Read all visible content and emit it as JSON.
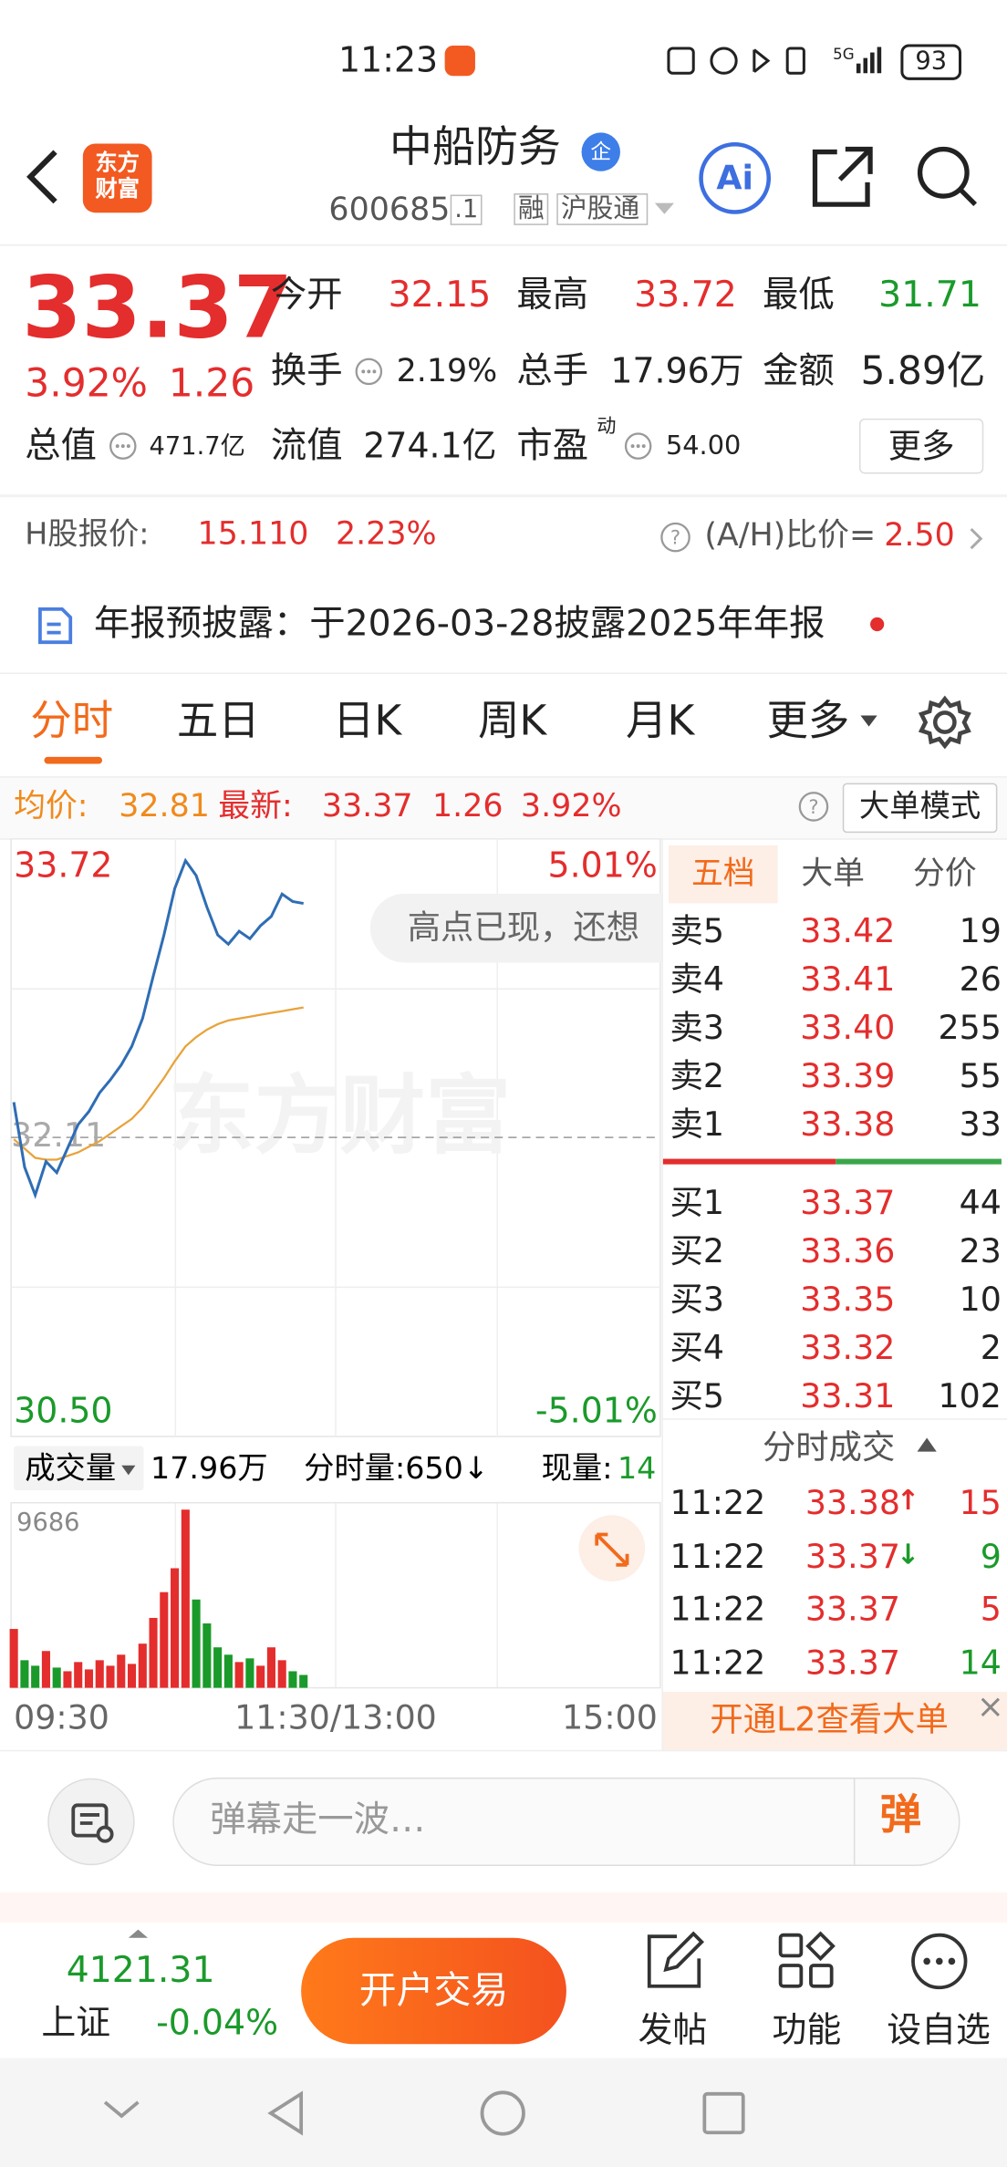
{
  "status_bar": {
    "time": "11:23",
    "network": "5G",
    "battery": "93"
  },
  "header": {
    "logo": [
      "东方",
      "财富"
    ],
    "title": "中船防务",
    "badge": "企",
    "code": "600685",
    "code_suffix": ".1",
    "tags": [
      "融",
      "沪股通"
    ],
    "ai": "Ai"
  },
  "quote": {
    "price": "33.37",
    "change_pct": "3.92%",
    "change": "1.26",
    "stats": [
      {
        "label": "今开",
        "value": "32.15"
      },
      {
        "label": "最高",
        "value": "33.72"
      },
      {
        "label": "最低",
        "value": "31.71"
      },
      {
        "label": "换手",
        "value": "2.19%"
      },
      {
        "label": "总手",
        "value": "17.96万"
      },
      {
        "label": "金额",
        "value": "5.89亿"
      },
      {
        "label": "总值",
        "value": "471.7亿"
      },
      {
        "label": "流值",
        "value": "274.1亿"
      },
      {
        "label": "市盈",
        "sup": "动",
        "value": "54.00"
      }
    ],
    "more": "更多"
  },
  "h_share": {
    "label": "H股报价:",
    "price": "15.110",
    "change_pct": "2.23%",
    "ratio_label": "(A/H)比价=",
    "ratio": "2.50"
  },
  "notice": "年报预披露：于2026-03-28披露2025年年报",
  "tabs": [
    "分时",
    "五日",
    "日K",
    "周K",
    "月K",
    "更多"
  ],
  "info_line": {
    "avg_label": "均价:",
    "avg": "32.81",
    "latest_label": "最新:",
    "latest": "33.37",
    "change": "1.26",
    "change_pct": "3.92%",
    "mode": "大单模式"
  },
  "intraday": {
    "high_label": "33.72",
    "low_label": "30.50",
    "high_pct": "5.01%",
    "low_pct": "-5.01%",
    "prev_close": "32.11",
    "watermark": "东方财富",
    "tooltip": "高点已现，还想",
    "price": [
      32.3,
      31.95,
      31.8,
      31.98,
      31.92,
      32.05,
      32.18,
      32.25,
      32.35,
      32.42,
      32.5,
      32.6,
      32.75,
      32.98,
      33.2,
      33.45,
      33.6,
      33.52,
      33.35,
      33.2,
      33.15,
      33.22,
      33.18,
      33.25,
      33.3,
      33.42,
      33.38,
      33.37
    ],
    "avg": [
      32.1,
      32.05,
      32.0,
      31.99,
      31.99,
      32.01,
      32.03,
      32.06,
      32.09,
      32.13,
      32.17,
      32.21,
      32.27,
      32.35,
      32.43,
      32.52,
      32.6,
      32.65,
      32.69,
      32.72,
      32.74,
      32.75,
      32.76,
      32.77,
      32.78,
      32.79,
      32.8,
      32.81
    ],
    "volume": [
      3200,
      1500,
      1200,
      2000,
      1100,
      900,
      1400,
      1000,
      1500,
      1200,
      1800,
      1300,
      2400,
      3800,
      5200,
      6500,
      9686,
      4800,
      3500,
      2200,
      1800,
      1400,
      1600,
      1200,
      2200,
      1500,
      900,
      700
    ],
    "volume_label": "成交量",
    "volume_total": "17.96万",
    "minute_volume": "分时量:650↓",
    "current_volume_label": "现量:",
    "current_volume": "14",
    "volume_max_label": "9686",
    "time_labels": [
      "09:30",
      "11:30/13:00",
      "15:00"
    ]
  },
  "order_book": {
    "tabs": [
      "五档",
      "大单",
      "分价"
    ],
    "asks": [
      {
        "label": "卖5",
        "price": "33.42",
        "volume": "19"
      },
      {
        "label": "卖4",
        "price": "33.41",
        "volume": "26"
      },
      {
        "label": "卖3",
        "price": "33.40",
        "volume": "255"
      },
      {
        "label": "卖2",
        "price": "33.39",
        "volume": "55"
      },
      {
        "label": "卖1",
        "price": "33.38",
        "volume": "33"
      }
    ],
    "bids": [
      {
        "label": "买1",
        "price": "33.37",
        "volume": "44"
      },
      {
        "label": "买2",
        "price": "33.36",
        "volume": "23"
      },
      {
        "label": "买3",
        "price": "33.35",
        "volume": "10"
      },
      {
        "label": "买4",
        "price": "33.32",
        "volume": "2"
      },
      {
        "label": "买5",
        "price": "33.31",
        "volume": "102"
      }
    ],
    "trades_title": "分时成交",
    "trades": [
      {
        "time": "11:22",
        "price": "33.38",
        "arrow": "↑",
        "volume": "15"
      },
      {
        "time": "11:22",
        "price": "33.37",
        "arrow": "↓",
        "volume": "9"
      },
      {
        "time": "11:22",
        "price": "33.37",
        "volume": "5"
      },
      {
        "time": "11:22",
        "price": "33.37",
        "volume": "14"
      }
    ],
    "l2": "开通L2查看大单"
  },
  "danmaku": {
    "placeholder": "弹幕走一波…",
    "button": "弹"
  },
  "bottom_bar": {
    "index_value": "4121.31",
    "index_name": "上证",
    "index_change": "-0.04%",
    "trade": "开户交易",
    "actions": [
      "发帖",
      "功能",
      "设自选"
    ]
  }
}
